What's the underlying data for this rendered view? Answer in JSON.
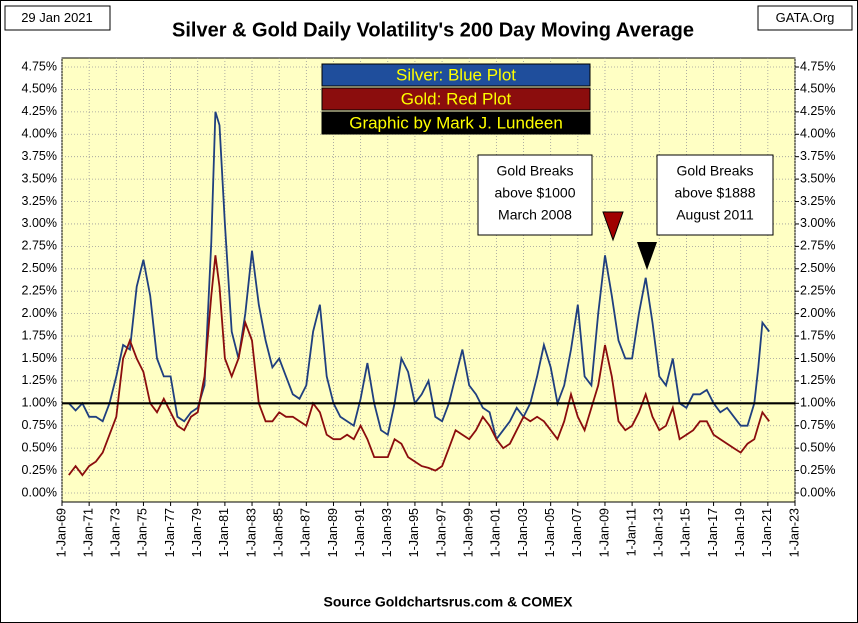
{
  "chart_data": {
    "type": "line",
    "title": "Silver & Gold Daily Volatility's  200 Day Moving Average",
    "date_label": "29 Jan 2021",
    "site_label": "GATA.Org",
    "source": "Source Goldchartsrus.com & COMEX",
    "legend_boxes": [
      {
        "text": "Silver: Blue Plot",
        "color": "#1f4e9c"
      },
      {
        "text": "Gold: Red Plot",
        "color": "#8b0d0d"
      },
      {
        "text": "Graphic by Mark J. Lundeen",
        "color": "#000000"
      }
    ],
    "annotations": [
      {
        "lines": [
          "Gold Breaks",
          "above $1000",
          "March 2008"
        ]
      },
      {
        "lines": [
          "Gold Breaks",
          "above $1888",
          "August 2011"
        ]
      }
    ],
    "reference_line": 1.0,
    "xlim": [
      1969,
      2023
    ],
    "xticks": [
      {
        "value": 1969,
        "label": "1-Jan-69"
      },
      {
        "value": 1971,
        "label": "1-Jan-71"
      },
      {
        "value": 1973,
        "label": "1-Jan-73"
      },
      {
        "value": 1975,
        "label": "1-Jan-75"
      },
      {
        "value": 1977,
        "label": "1-Jan-77"
      },
      {
        "value": 1979,
        "label": "1-Jan-79"
      },
      {
        "value": 1981,
        "label": "1-Jan-81"
      },
      {
        "value": 1983,
        "label": "1-Jan-83"
      },
      {
        "value": 1985,
        "label": "1-Jan-85"
      },
      {
        "value": 1987,
        "label": "1-Jan-87"
      },
      {
        "value": 1989,
        "label": "1-Jan-89"
      },
      {
        "value": 1991,
        "label": "1-Jan-91"
      },
      {
        "value": 1993,
        "label": "1-Jan-93"
      },
      {
        "value": 1995,
        "label": "1-Jan-95"
      },
      {
        "value": 1997,
        "label": "1-Jan-97"
      },
      {
        "value": 1999,
        "label": "1-Jan-99"
      },
      {
        "value": 2001,
        "label": "1-Jan-01"
      },
      {
        "value": 2003,
        "label": "1-Jan-03"
      },
      {
        "value": 2005,
        "label": "1-Jan-05"
      },
      {
        "value": 2007,
        "label": "1-Jan-07"
      },
      {
        "value": 2009,
        "label": "1-Jan-09"
      },
      {
        "value": 2011,
        "label": "1-Jan-11"
      },
      {
        "value": 2013,
        "label": "1-Jan-13"
      },
      {
        "value": 2015,
        "label": "1-Jan-15"
      },
      {
        "value": 2017,
        "label": "1-Jan-17"
      },
      {
        "value": 2019,
        "label": "1-Jan-19"
      },
      {
        "value": 2021,
        "label": "1-Jan-21"
      },
      {
        "value": 2023,
        "label": "1-Jan-23"
      }
    ],
    "ylim": [
      0,
      4.75
    ],
    "yticks": [
      {
        "value": 0,
        "label": "0.00%"
      },
      {
        "value": 0.25,
        "label": "0.25%"
      },
      {
        "value": 0.5,
        "label": "0.50%"
      },
      {
        "value": 0.75,
        "label": "0.75%"
      },
      {
        "value": 1,
        "label": "1.00%"
      },
      {
        "value": 1.25,
        "label": "1.25%"
      },
      {
        "value": 1.5,
        "label": "1.50%"
      },
      {
        "value": 1.75,
        "label": "1.75%"
      },
      {
        "value": 2,
        "label": "2.00%"
      },
      {
        "value": 2.25,
        "label": "2.25%"
      },
      {
        "value": 2.5,
        "label": "2.50%"
      },
      {
        "value": 2.75,
        "label": "2.75%"
      },
      {
        "value": 3,
        "label": "3.00%"
      },
      {
        "value": 3.25,
        "label": "3.25%"
      },
      {
        "value": 3.5,
        "label": "3.50%"
      },
      {
        "value": 3.75,
        "label": "3.75%"
      },
      {
        "value": 4,
        "label": "4.00%"
      },
      {
        "value": 4.25,
        "label": "4.25%"
      },
      {
        "value": 4.5,
        "label": "4.50%"
      },
      {
        "value": 4.75,
        "label": "4.75%"
      }
    ],
    "y2lim": [
      0,
      4.75
    ],
    "y2ticks": [
      {
        "value": 0,
        "label": "0.00%"
      },
      {
        "value": 0.25,
        "label": "0.25%"
      },
      {
        "value": 0.5,
        "label": "0.50%"
      },
      {
        "value": 0.75,
        "label": "0.75%"
      },
      {
        "value": 1,
        "label": "1.00%"
      },
      {
        "value": 1.25,
        "label": "1.25%"
      },
      {
        "value": 1.5,
        "label": "1.50%"
      },
      {
        "value": 1.75,
        "label": "1.75%"
      },
      {
        "value": 2,
        "label": "2.00%"
      },
      {
        "value": 2.25,
        "label": "2.25%"
      },
      {
        "value": 2.5,
        "label": "2.50%"
      },
      {
        "value": 2.75,
        "label": "2.75%"
      },
      {
        "value": 3,
        "label": "3.00%"
      },
      {
        "value": 3.25,
        "label": "3.25%"
      },
      {
        "value": 3.5,
        "label": "3.50%"
      },
      {
        "value": 3.75,
        "label": "3.75%"
      },
      {
        "value": 4,
        "label": "4.00%"
      },
      {
        "value": 4.25,
        "label": "4.25%"
      },
      {
        "value": 4.5,
        "label": "4.50%"
      },
      {
        "value": 4.75,
        "label": "4.75%"
      }
    ],
    "grid": true,
    "x": [
      1969.5,
      1970,
      1970.5,
      1971,
      1971.5,
      1972,
      1972.5,
      1973,
      1973.5,
      1974,
      1974.5,
      1975,
      1975.5,
      1976,
      1976.5,
      1977,
      1977.5,
      1978,
      1978.5,
      1979,
      1979.5,
      1980,
      1980.3,
      1980.6,
      1981,
      1981.5,
      1982,
      1982.5,
      1983,
      1983.5,
      1984,
      1984.5,
      1985,
      1985.5,
      1986,
      1986.5,
      1987,
      1987.5,
      1988,
      1988.5,
      1989,
      1989.5,
      1990,
      1990.5,
      1991,
      1991.5,
      1992,
      1992.5,
      1993,
      1993.5,
      1994,
      1994.5,
      1995,
      1995.5,
      1996,
      1996.5,
      1997,
      1997.5,
      1998,
      1998.5,
      1999,
      1999.5,
      2000,
      2000.5,
      2001,
      2001.5,
      2002,
      2002.5,
      2003,
      2003.5,
      2004,
      2004.5,
      2005,
      2005.5,
      2006,
      2006.5,
      2007,
      2007.5,
      2008,
      2008.5,
      2009,
      2009.5,
      2010,
      2010.5,
      2011,
      2011.5,
      2012,
      2012.5,
      2013,
      2013.5,
      2014,
      2014.5,
      2015,
      2015.5,
      2016,
      2016.5,
      2017,
      2017.5,
      2018,
      2018.5,
      2019,
      2019.5,
      2020,
      2020.3,
      2020.6,
      2021.1
    ],
    "series": [
      {
        "name": "Silver",
        "color": "#1f3f7f",
        "values": [
          1.0,
          0.92,
          1.0,
          0.85,
          0.85,
          0.8,
          1.0,
          1.3,
          1.65,
          1.6,
          2.3,
          2.6,
          2.2,
          1.5,
          1.3,
          1.3,
          0.85,
          0.8,
          0.9,
          0.95,
          1.2,
          2.8,
          4.25,
          4.1,
          3.0,
          1.8,
          1.5,
          2.0,
          2.7,
          2.1,
          1.7,
          1.4,
          1.5,
          1.3,
          1.1,
          1.05,
          1.2,
          1.8,
          2.1,
          1.3,
          1.0,
          0.85,
          0.8,
          0.75,
          1.05,
          1.45,
          1.0,
          0.7,
          0.65,
          1.0,
          1.5,
          1.35,
          1.0,
          1.1,
          1.25,
          0.85,
          0.8,
          1.0,
          1.3,
          1.6,
          1.2,
          1.1,
          0.95,
          0.9,
          0.6,
          0.7,
          0.8,
          0.95,
          0.85,
          1.0,
          1.3,
          1.65,
          1.4,
          1.0,
          1.2,
          1.6,
          2.1,
          1.3,
          1.2,
          2.0,
          2.65,
          2.2,
          1.7,
          1.5,
          1.5,
          2.0,
          2.4,
          1.9,
          1.3,
          1.2,
          1.5,
          1.0,
          0.95,
          1.1,
          1.1,
          1.15,
          1.0,
          0.9,
          0.95,
          0.85,
          0.75,
          0.75,
          1.0,
          1.4,
          1.9,
          1.8
        ]
      },
      {
        "name": "Gold",
        "color": "#8b0d0d",
        "values": [
          0.2,
          0.3,
          0.2,
          0.3,
          0.35,
          0.45,
          0.65,
          0.85,
          1.5,
          1.7,
          1.5,
          1.35,
          1.0,
          0.9,
          1.05,
          0.9,
          0.75,
          0.7,
          0.85,
          0.9,
          1.3,
          2.2,
          2.65,
          2.3,
          1.5,
          1.3,
          1.5,
          1.9,
          1.7,
          1.0,
          0.8,
          0.8,
          0.9,
          0.85,
          0.85,
          0.8,
          0.75,
          1.0,
          0.9,
          0.65,
          0.6,
          0.6,
          0.65,
          0.6,
          0.75,
          0.6,
          0.4,
          0.4,
          0.4,
          0.6,
          0.55,
          0.4,
          0.35,
          0.3,
          0.28,
          0.25,
          0.3,
          0.5,
          0.7,
          0.65,
          0.6,
          0.7,
          0.85,
          0.75,
          0.6,
          0.5,
          0.55,
          0.7,
          0.85,
          0.8,
          0.85,
          0.8,
          0.7,
          0.6,
          0.8,
          1.1,
          0.85,
          0.7,
          0.95,
          1.2,
          1.65,
          1.3,
          0.8,
          0.7,
          0.75,
          0.9,
          1.1,
          0.85,
          0.7,
          0.75,
          0.95,
          0.6,
          0.65,
          0.7,
          0.8,
          0.8,
          0.65,
          0.6,
          0.55,
          0.5,
          0.45,
          0.55,
          0.6,
          0.75,
          0.9,
          0.8
        ]
      }
    ]
  }
}
